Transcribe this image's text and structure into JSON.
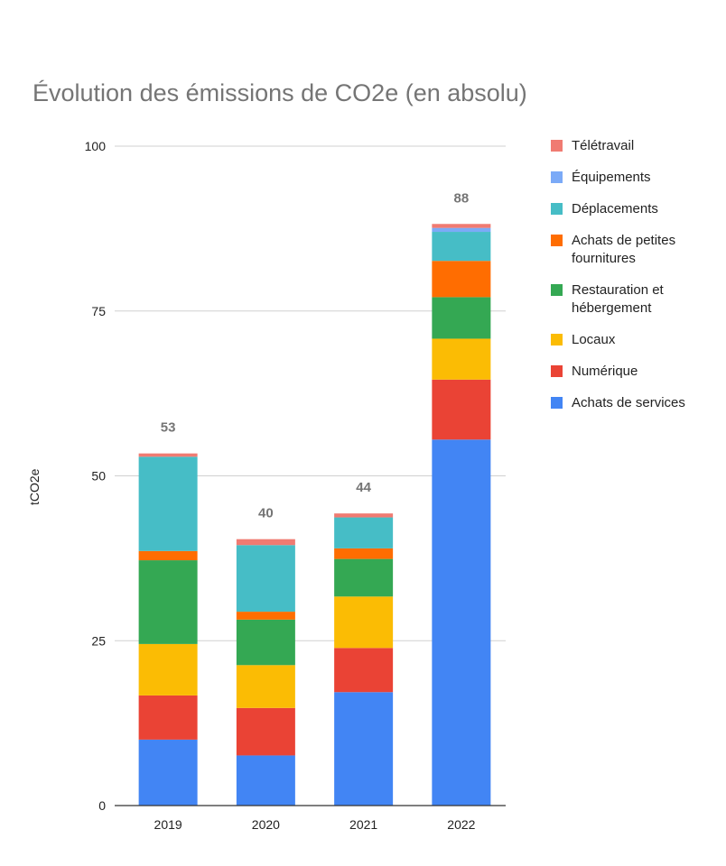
{
  "chart_data": {
    "type": "bar",
    "stacked": true,
    "title": "Évolution des émissions de CO2e (en absolu)",
    "xlabel": "",
    "ylabel": "tCO2e",
    "ylim": [
      0,
      100
    ],
    "yticks": [
      0,
      25,
      50,
      75,
      100
    ],
    "grid": true,
    "legend_position": "right",
    "categories": [
      "2019",
      "2020",
      "2021",
      "2022"
    ],
    "totals_labels": [
      "53",
      "40",
      "44",
      "88"
    ],
    "series": [
      {
        "name": "Achats de services",
        "color": "#4285f4",
        "values": [
          10.0,
          7.6,
          17.2,
          55.5
        ]
      },
      {
        "name": "Numérique",
        "color": "#ea4335",
        "values": [
          6.7,
          7.2,
          6.7,
          9.1
        ]
      },
      {
        "name": "Locaux",
        "color": "#fbbc04",
        "values": [
          7.8,
          6.5,
          7.8,
          6.2
        ]
      },
      {
        "name": "Restauration et hébergement",
        "color": "#34a853",
        "values": [
          12.7,
          6.9,
          5.7,
          6.3
        ]
      },
      {
        "name": "Achats de petites fournitures",
        "color": "#ff6d01",
        "values": [
          1.4,
          1.2,
          1.6,
          5.5
        ]
      },
      {
        "name": "Déplacements",
        "color": "#46bdc6",
        "values": [
          14.3,
          10.1,
          4.7,
          4.4
        ]
      },
      {
        "name": "Équipements",
        "color": "#7baaf7",
        "values": [
          0,
          0,
          0,
          0.6
        ]
      },
      {
        "name": "Télétravail",
        "color": "#f07b72",
        "values": [
          0.5,
          0.9,
          0.6,
          0.6
        ]
      }
    ]
  }
}
